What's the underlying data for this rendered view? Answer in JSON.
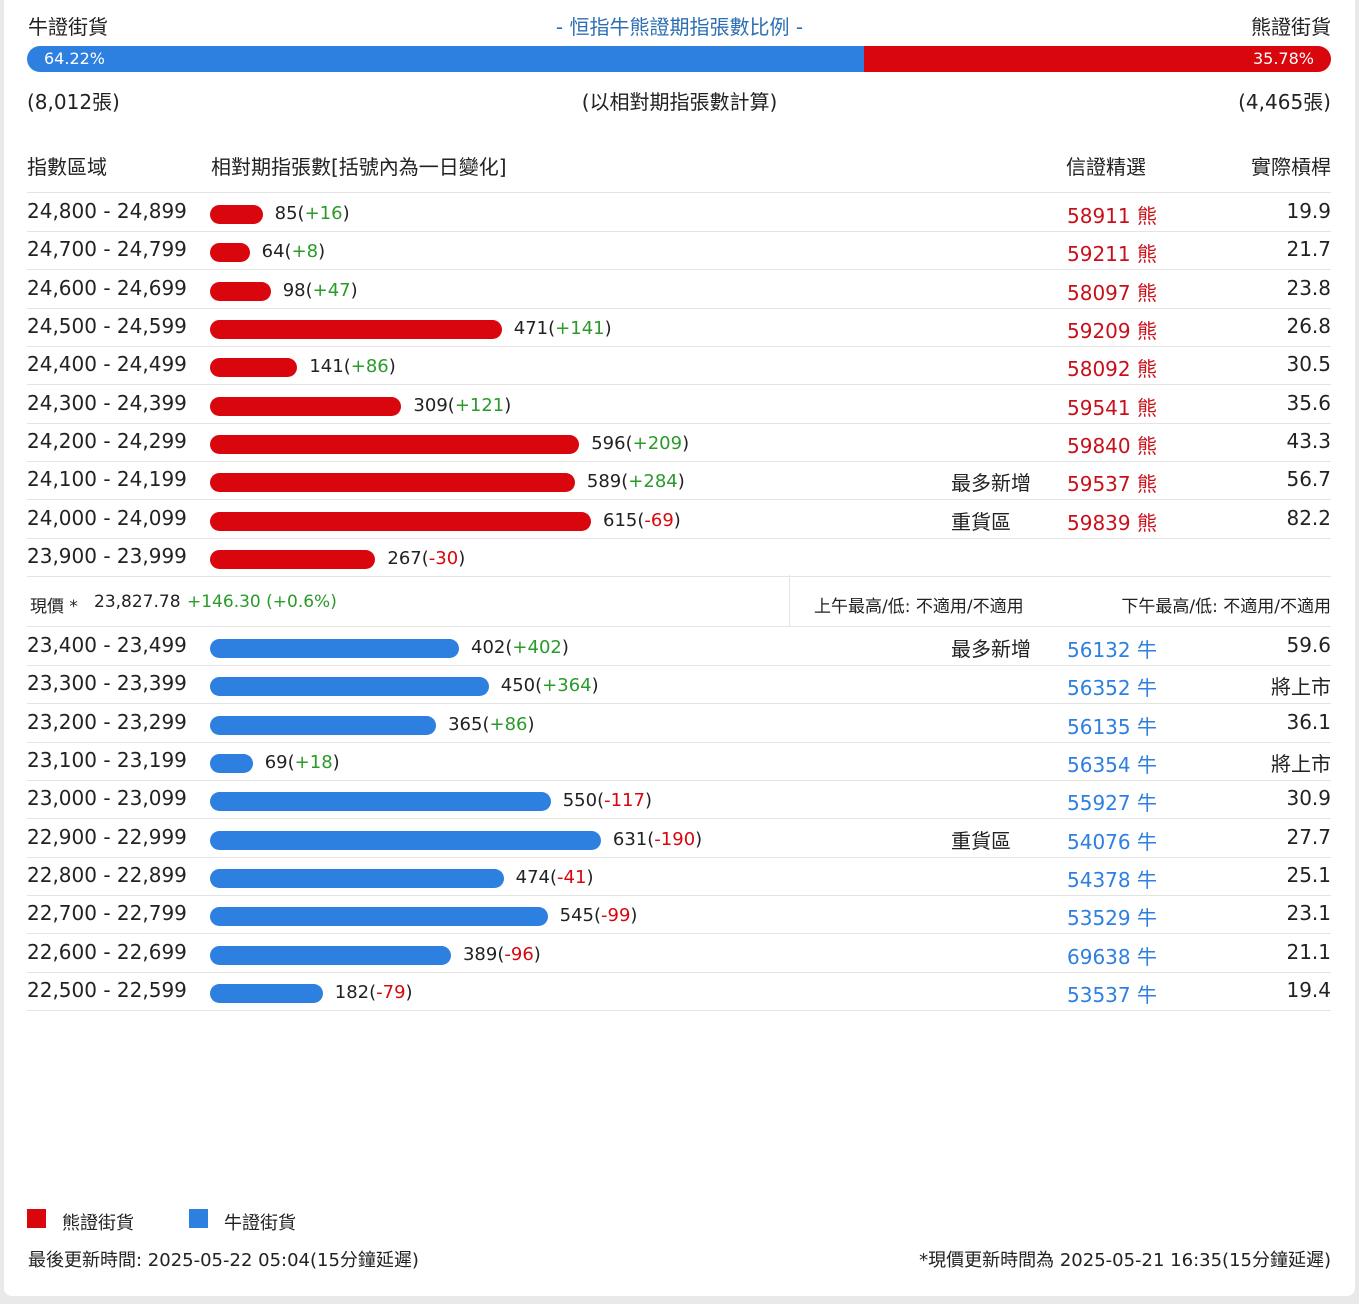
{
  "header": {
    "left_label": "牛證街貨",
    "title": "- 恒指牛熊證期指張數比例 -",
    "right_label": "熊證街貨",
    "bull_pct": "64.22%",
    "bear_pct": "35.78%",
    "bull_pct_value": 64.22,
    "bull_count": "(8,012張)",
    "note": "(以相對期指張數計算)",
    "bear_count": "(4,465張)"
  },
  "columns": {
    "range": "指數區域",
    "qty": "相對期指張數[括號內為一日變化]",
    "pick": "信證精選",
    "leverage": "實際槓桿"
  },
  "chart_data": {
    "type": "bar",
    "orientation": "horizontal",
    "series": [
      {
        "name": "熊證街貨",
        "color": "#d9060d",
        "rows": [
          {
            "range": "24,800 - 24,899",
            "value": 85,
            "change": "+16",
            "tag": "",
            "code": "58911 熊",
            "leverage": "19.9"
          },
          {
            "range": "24,700 - 24,799",
            "value": 64,
            "change": "+8",
            "tag": "",
            "code": "59211 熊",
            "leverage": "21.7"
          },
          {
            "range": "24,600 - 24,699",
            "value": 98,
            "change": "+47",
            "tag": "",
            "code": "58097 熊",
            "leverage": "23.8"
          },
          {
            "range": "24,500 - 24,599",
            "value": 471,
            "change": "+141",
            "tag": "",
            "code": "59209 熊",
            "leverage": "26.8"
          },
          {
            "range": "24,400 - 24,499",
            "value": 141,
            "change": "+86",
            "tag": "",
            "code": "58092 熊",
            "leverage": "30.5"
          },
          {
            "range": "24,300 - 24,399",
            "value": 309,
            "change": "+121",
            "tag": "",
            "code": "59541 熊",
            "leverage": "35.6"
          },
          {
            "range": "24,200 - 24,299",
            "value": 596,
            "change": "+209",
            "tag": "",
            "code": "59840 熊",
            "leverage": "43.3"
          },
          {
            "range": "24,100 - 24,199",
            "value": 589,
            "change": "+284",
            "tag": "最多新增",
            "code": "59537 熊",
            "leverage": "56.7"
          },
          {
            "range": "24,000 - 24,099",
            "value": 615,
            "change": "-69",
            "tag": "重貨區",
            "code": "59839 熊",
            "leverage": "82.2"
          },
          {
            "range": "23,900 - 23,999",
            "value": 267,
            "change": "-30",
            "tag": "",
            "code": "",
            "leverage": ""
          }
        ]
      },
      {
        "name": "牛證街貨",
        "color": "#2d7fe0",
        "rows": [
          {
            "range": "23,400 - 23,499",
            "value": 402,
            "change": "+402",
            "tag": "最多新增",
            "code": "56132 牛",
            "leverage": "59.6"
          },
          {
            "range": "23,300 - 23,399",
            "value": 450,
            "change": "+364",
            "tag": "",
            "code": "56352 牛",
            "leverage": "將上市"
          },
          {
            "range": "23,200 - 23,299",
            "value": 365,
            "change": "+86",
            "tag": "",
            "code": "56135 牛",
            "leverage": "36.1"
          },
          {
            "range": "23,100 - 23,199",
            "value": 69,
            "change": "+18",
            "tag": "",
            "code": "56354 牛",
            "leverage": "將上市"
          },
          {
            "range": "23,000 - 23,099",
            "value": 550,
            "change": "-117",
            "tag": "",
            "code": "55927 牛",
            "leverage": "30.9"
          },
          {
            "range": "22,900 - 22,999",
            "value": 631,
            "change": "-190",
            "tag": "重貨區",
            "code": "54076 牛",
            "leverage": "27.7"
          },
          {
            "range": "22,800 - 22,899",
            "value": 474,
            "change": "-41",
            "tag": "",
            "code": "54378 牛",
            "leverage": "25.1"
          },
          {
            "range": "22,700 - 22,799",
            "value": 545,
            "change": "-99",
            "tag": "",
            "code": "53529 牛",
            "leverage": "23.1"
          },
          {
            "range": "22,600 - 22,699",
            "value": 389,
            "change": "-96",
            "tag": "",
            "code": "69638 牛",
            "leverage": "21.1"
          },
          {
            "range": "22,500 - 22,599",
            "value": 182,
            "change": "-79",
            "tag": "",
            "code": "53537 牛",
            "leverage": "19.4"
          }
        ]
      }
    ]
  },
  "price": {
    "label": "現價 *",
    "value": "23,827.78",
    "change": "+146.30 (+0.6%)",
    "am": "上午最高/低: 不適用/不適用",
    "pm": "下午最高/低: 不適用/不適用"
  },
  "legend": {
    "bear": "熊證街貨",
    "bull": "牛證街貨",
    "bear_color": "#d9060d",
    "bull_color": "#2d7fe0"
  },
  "footer": {
    "updated": "最後更新時間: 2025-05-22 05:04(15分鐘延遲)",
    "price_updated": "*現價更新時間為 2025-05-21 16:35(15分鐘延遲)"
  }
}
